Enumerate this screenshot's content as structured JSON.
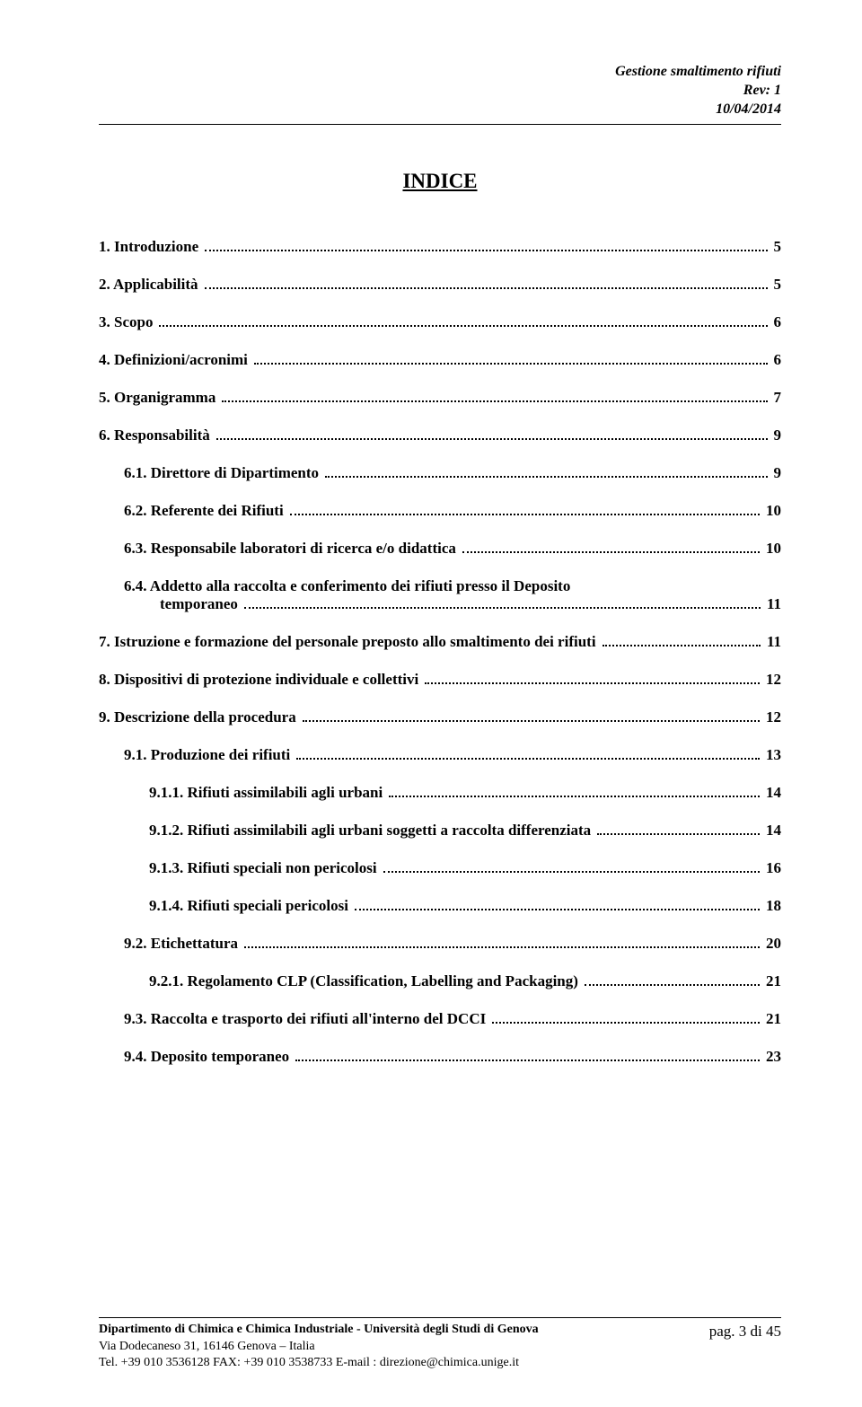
{
  "header": {
    "line1": "Gestione smaltimento rifiuti",
    "line2": "Rev: 1",
    "line3": "10/04/2014"
  },
  "title": "INDICE",
  "toc": [
    {
      "level": 1,
      "label": "1.   Introduzione",
      "page": "5"
    },
    {
      "level": 1,
      "label": "2.   Applicabilità",
      "page": "5"
    },
    {
      "level": 1,
      "label": "3.   Scopo",
      "page": "6"
    },
    {
      "level": 1,
      "label": "4.   Definizioni/acronimi",
      "page": "6"
    },
    {
      "level": 1,
      "label": "5.   Organigramma",
      "page": "7"
    },
    {
      "level": 1,
      "label": "6.   Responsabilità",
      "page": "9"
    },
    {
      "level": 2,
      "label": "6.1.   Direttore di Dipartimento",
      "page": "9"
    },
    {
      "level": 2,
      "label": "6.2.   Referente dei Rifiuti",
      "page": "10"
    },
    {
      "level": 2,
      "label": "6.3.   Responsabile laboratori di ricerca e/o didattica",
      "page": "10"
    },
    {
      "level": 2,
      "wrap": true,
      "label1": "6.4.   Addetto alla raccolta e conferimento dei rifiuti presso il Deposito",
      "label2": "temporaneo",
      "page": "11"
    },
    {
      "level": 1,
      "label": "7.   Istruzione e formazione del personale preposto allo smaltimento dei rifiuti",
      "page": "11"
    },
    {
      "level": 1,
      "label": "8.   Dispositivi di protezione individuale e collettivi",
      "page": "12"
    },
    {
      "level": 1,
      "label": "9.   Descrizione della procedura",
      "page": "12"
    },
    {
      "level": 2,
      "label": "9.1.   Produzione dei rifiuti",
      "page": "13"
    },
    {
      "level": 3,
      "label": "9.1.1.   Rifiuti assimilabili agli urbani",
      "page": "14"
    },
    {
      "level": 3,
      "label": "9.1.2.   Rifiuti assimilabili agli urbani soggetti a raccolta differenziata",
      "page": "14"
    },
    {
      "level": 3,
      "label": "9.1.3.   Rifiuti speciali non pericolosi",
      "page": "16"
    },
    {
      "level": 3,
      "label": "9.1.4.   Rifiuti speciali pericolosi",
      "page": "18"
    },
    {
      "level": 2,
      "label": "9.2.   Etichettatura",
      "page": "20"
    },
    {
      "level": 3,
      "label": "9.2.1.   Regolamento CLP (Classification, Labelling and Packaging)",
      "page": "21"
    },
    {
      "level": 2,
      "label": "9.3.   Raccolta e trasporto dei rifiuti all'interno del DCCI",
      "page": "21"
    },
    {
      "level": 2,
      "label": "9.4.   Deposito temporaneo",
      "page": "23"
    }
  ],
  "footer": {
    "left_line1": "Dipartimento di Chimica e Chimica Industriale - Università degli Studi di Genova",
    "left_line2": "Via Dodecaneso 31, 16146 Genova – Italia",
    "left_line3": "Tel. +39 010 3536128  FAX: +39 010 3538733  E-mail : direzione@chimica.unige.it",
    "right": "pag. 3 di 45"
  }
}
